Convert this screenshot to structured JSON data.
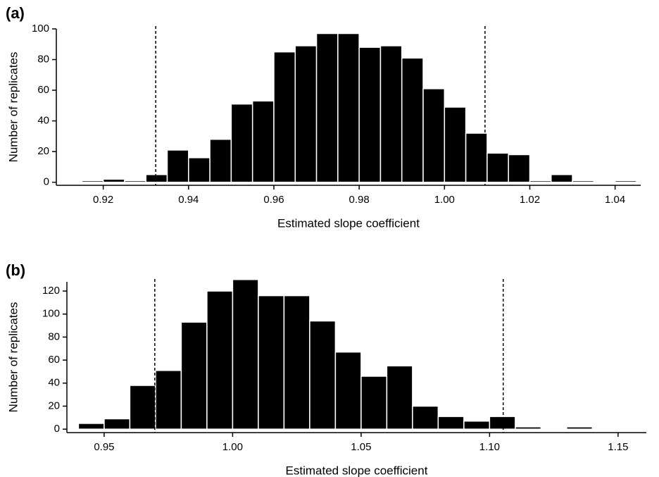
{
  "chart_data": [
    {
      "type": "histogram",
      "panel_label": "(a)",
      "xlabel": "Estimated slope coefficient",
      "ylabel": "Number of replicates",
      "bins": [
        0.915,
        0.92,
        0.925,
        0.93,
        0.935,
        0.94,
        0.945,
        0.95,
        0.955,
        0.96,
        0.965,
        0.97,
        0.975,
        0.98,
        0.985,
        0.99,
        0.995,
        1.0,
        1.005,
        1.01,
        1.015,
        1.02,
        1.025,
        1.03,
        1.035,
        1.04,
        1.045
      ],
      "values": [
        1,
        2,
        1,
        5,
        21,
        16,
        28,
        51,
        53,
        85,
        89,
        97,
        97,
        88,
        89,
        81,
        61,
        49,
        32,
        19,
        18,
        1,
        5,
        1,
        0,
        1
      ],
      "color": "#000000",
      "xlim": [
        0.909,
        1.046
      ],
      "xticks": [
        0.92,
        0.94,
        0.96,
        0.98,
        {
          "value": 1,
          "label": "1.00"
        },
        1.02,
        1.04
      ],
      "ylim": [
        -2,
        100
      ],
      "yticks": [
        0,
        20,
        40,
        60,
        80,
        100
      ],
      "vlines": [
        0.9323,
        1.0095
      ]
    },
    {
      "type": "histogram",
      "panel_label": "(b)",
      "xlabel": "Estimated slope coefficient",
      "ylabel": "Number of replicates",
      "bins": [
        0.94,
        0.95,
        0.96,
        0.97,
        0.98,
        0.99,
        1.0,
        1.01,
        1.02,
        1.03,
        1.04,
        1.05,
        1.06,
        1.07,
        1.08,
        1.09,
        1.1,
        1.11,
        1.12,
        1.13,
        1.14
      ],
      "values": [
        5,
        9,
        38,
        51,
        93,
        120,
        130,
        116,
        116,
        94,
        67,
        46,
        55,
        20,
        11,
        7,
        11,
        2,
        0,
        2
      ],
      "color": "#000000",
      "xlim": [
        0.9355,
        1.161
      ],
      "xticks": [
        0.95,
        {
          "value": 1,
          "label": "1.00"
        },
        1.05,
        {
          "value": 1.1,
          "label": "1.10"
        },
        1.15
      ],
      "ylim": [
        -3,
        128
      ],
      "yticks": [
        0,
        20,
        40,
        60,
        80,
        100,
        120
      ],
      "vlines": [
        0.9697,
        1.1053
      ]
    }
  ]
}
